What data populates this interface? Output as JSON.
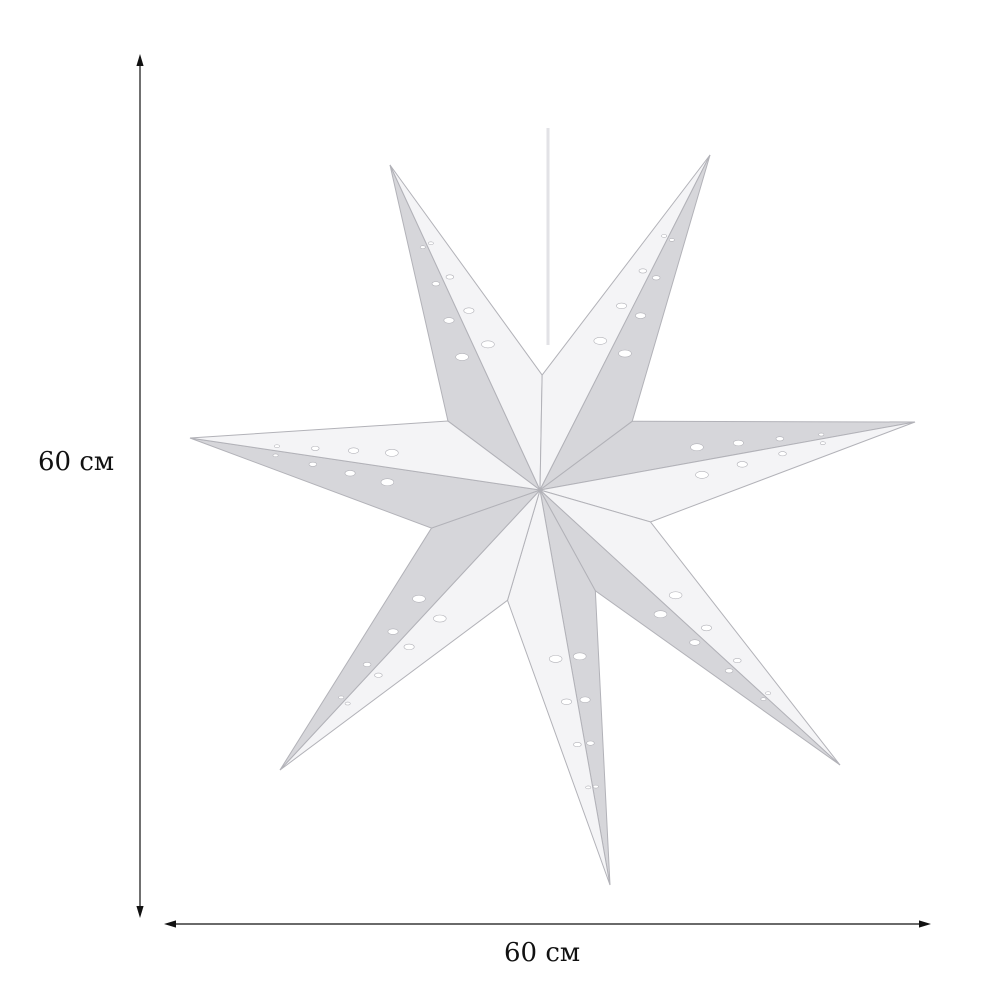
{
  "product": {
    "name": "",
    "points": 7,
    "colors": {
      "silver_light": "#f4f4f6",
      "silver_mid": "#d6d6da",
      "silver_dark": "#b2b2b8",
      "line": "#111111"
    }
  },
  "dimensions": {
    "height_label": "60 см",
    "width_label": "60 см"
  }
}
